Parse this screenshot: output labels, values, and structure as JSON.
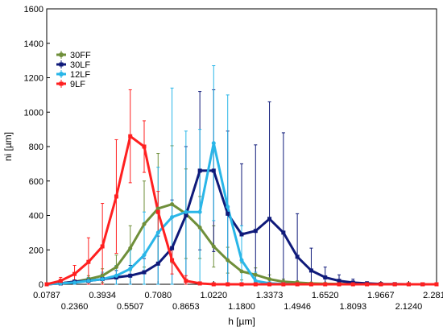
{
  "chart_data": {
    "type": "line",
    "xlabel": "h [µm]",
    "ylabel": "ni [µm]",
    "ylim": [
      0,
      1600
    ],
    "xlim": [
      0.0787,
      2.2813
    ],
    "y_ticks": [
      "0",
      "200",
      "400",
      "600",
      "800",
      "1000",
      "1200",
      "1400",
      "1600"
    ],
    "x_ticks_top": [
      "0.0787",
      "0.3934",
      "0.7080",
      "1.0220",
      "1.3373",
      "1.6520",
      "1.9667",
      "2.2813"
    ],
    "x_ticks_bottom": [
      "0.2360",
      "0.5507",
      "0.8653",
      "1.1800",
      "1.4946",
      "1.8093",
      "2.1240"
    ],
    "grid": false,
    "legend_position": "top-left",
    "x": [
      0.0787,
      0.1574,
      0.236,
      0.3147,
      0.3934,
      0.472,
      0.5507,
      0.6294,
      0.708,
      0.7867,
      0.8653,
      0.944,
      1.022,
      1.1013,
      1.18,
      1.2587,
      1.3373,
      1.416,
      1.4946,
      1.5733,
      1.652,
      1.7307,
      1.8093,
      1.888,
      1.9667,
      2.0453,
      2.124,
      2.2027,
      2.2813
    ],
    "series": [
      {
        "name": "30FF",
        "color": "#6f8f3a",
        "values": [
          0,
          5,
          15,
          30,
          50,
          100,
          210,
          350,
          440,
          465,
          410,
          330,
          220,
          140,
          75,
          55,
          30,
          15,
          10,
          5,
          3,
          2,
          1,
          0,
          0,
          0,
          0,
          0,
          0
        ],
        "err": [
          0,
          5,
          10,
          20,
          40,
          70,
          130,
          250,
          320,
          340,
          260,
          180,
          120,
          75,
          50,
          40,
          25,
          15,
          10,
          5,
          3,
          2,
          1,
          0,
          0,
          0,
          0,
          0,
          0
        ]
      },
      {
        "name": "30LF",
        "color": "#0f1a7a",
        "values": [
          0,
          5,
          15,
          20,
          30,
          40,
          50,
          70,
          120,
          210,
          400,
          660,
          660,
          410,
          290,
          310,
          380,
          300,
          160,
          80,
          40,
          20,
          10,
          5,
          2,
          1,
          0,
          0,
          0
        ],
        "err": [
          0,
          5,
          10,
          20,
          30,
          40,
          60,
          80,
          160,
          280,
          400,
          460,
          470,
          480,
          410,
          500,
          680,
          580,
          250,
          130,
          60,
          35,
          20,
          10,
          5,
          2,
          0,
          0,
          0
        ],
        "marker": "square"
      },
      {
        "name": "12LF",
        "color": "#29b6e8",
        "values": [
          0,
          5,
          10,
          20,
          30,
          50,
          90,
          170,
          300,
          390,
          420,
          420,
          820,
          450,
          140,
          20,
          5,
          2,
          0,
          0,
          0,
          0,
          0,
          0,
          0,
          0,
          0,
          0,
          0
        ],
        "err": [
          0,
          5,
          10,
          20,
          40,
          60,
          110,
          250,
          380,
          750,
          470,
          480,
          450,
          650,
          200,
          50,
          10,
          5,
          0,
          0,
          0,
          0,
          0,
          0,
          0,
          0,
          0,
          0,
          0
        ]
      },
      {
        "name": "9LF",
        "color": "#ff2020",
        "values": [
          0,
          20,
          60,
          130,
          220,
          510,
          860,
          800,
          420,
          140,
          20,
          5,
          0,
          0,
          0,
          0,
          0,
          0,
          0,
          0,
          0,
          0,
          0,
          0,
          0,
          0,
          0,
          0,
          0
        ],
        "err": [
          0,
          20,
          50,
          140,
          250,
          330,
          270,
          150,
          120,
          80,
          30,
          5,
          0,
          0,
          0,
          0,
          0,
          0,
          0,
          0,
          0,
          0,
          0,
          0,
          0,
          0,
          0,
          0,
          0
        ],
        "marker": "square"
      }
    ]
  }
}
